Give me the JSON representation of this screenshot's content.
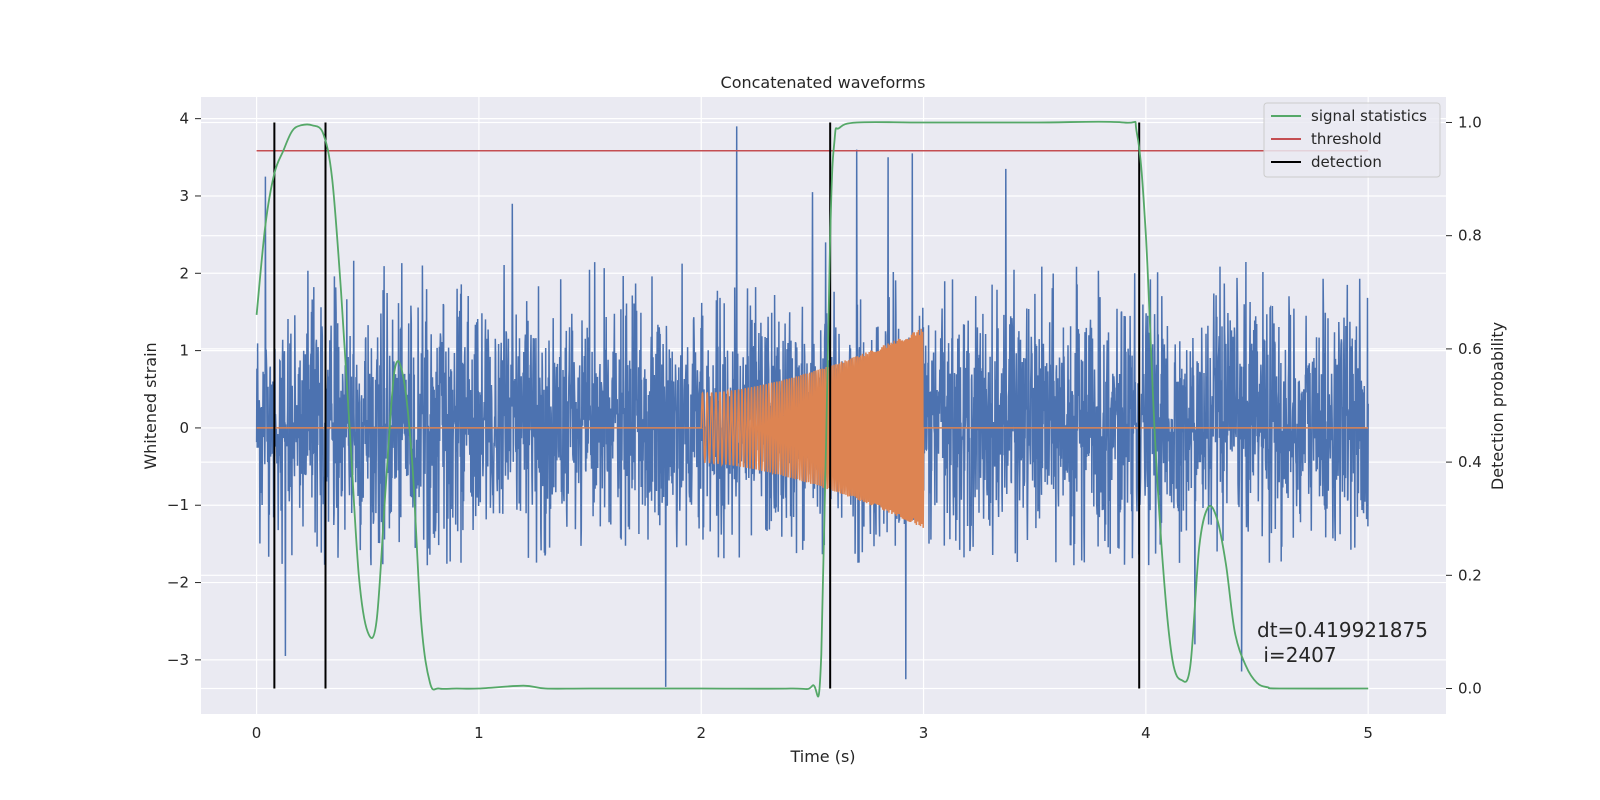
{
  "chart_data": {
    "type": "line",
    "title": "Concatenated waveforms",
    "xlabel": "Time (s)",
    "ylabel_left": "Whitened strain",
    "ylabel_right": "Detection probability",
    "xlim": [
      -0.25,
      5.35
    ],
    "ylim_left": [
      -3.7,
      4.28
    ],
    "ylim_right": [
      -0.045,
      1.045
    ],
    "x_ticks": [
      0,
      1,
      2,
      3,
      4,
      5
    ],
    "x_tick_labels": [
      "0",
      "1",
      "2",
      "3",
      "4",
      "5"
    ],
    "y_left_ticks": [
      -3,
      -2,
      -1,
      0,
      1,
      2,
      3,
      4
    ],
    "y_left_tick_labels": [
      "−3",
      "−2",
      "−1",
      "0",
      "1",
      "2",
      "3",
      "4"
    ],
    "y_right_ticks": [
      0.0,
      0.2,
      0.4,
      0.6,
      0.8,
      1.0
    ],
    "y_right_tick_labels": [
      "0.0",
      "0.2",
      "0.4",
      "0.6",
      "0.8",
      "1.0"
    ],
    "grid": true,
    "legend_position": "top-right",
    "legend": [
      {
        "label": "signal statistics",
        "color": "#55a868",
        "style": "line"
      },
      {
        "label": "threshold",
        "color": "#c44e52",
        "style": "line"
      },
      {
        "label": "detection",
        "color": "#000000",
        "style": "line"
      }
    ],
    "series": [
      {
        "name": "",
        "axis": "left",
        "kind": "noise",
        "color": "#4c72b0",
        "x_range": [
          0,
          5
        ],
        "typical_amplitude": [
          -1.8,
          2.2
        ],
        "peak_values": [
          {
            "x": 0.04,
            "y": 3.25
          },
          {
            "x": 0.31,
            "y": 2.6
          },
          {
            "x": 1.15,
            "y": 2.9
          },
          {
            "x": 2.16,
            "y": 3.9
          },
          {
            "x": 2.5,
            "y": 3.05
          },
          {
            "x": 2.56,
            "y": 2.4
          },
          {
            "x": 2.7,
            "y": 3.6
          },
          {
            "x": 2.84,
            "y": 3.5
          },
          {
            "x": 2.95,
            "y": 3.55
          },
          {
            "x": 3.37,
            "y": 3.35
          },
          {
            "x": 1.84,
            "y": -3.35
          },
          {
            "x": 2.92,
            "y": -3.25
          },
          {
            "x": 0.13,
            "y": -2.95
          },
          {
            "x": 4.43,
            "y": -3.15
          },
          {
            "x": 4.22,
            "y": -2.8
          }
        ]
      },
      {
        "name": "",
        "axis": "left",
        "kind": "chirp",
        "color": "#dd8452",
        "flat_range": [
          0,
          5
        ],
        "chirp_start": 2.0,
        "chirp_end": 3.0,
        "amplitude_start": 0.45,
        "amplitude_end": 1.3
      },
      {
        "name": "signal statistics",
        "axis": "right",
        "color": "#55a868",
        "x": [
          0,
          0.04,
          0.08,
          0.12,
          0.16,
          0.2,
          0.25,
          0.3,
          0.34,
          0.38,
          0.42,
          0.46,
          0.5,
          0.54,
          0.58,
          0.62,
          0.66,
          0.7,
          0.74,
          0.78,
          0.82,
          0.9,
          1.0,
          1.2,
          1.3,
          1.5,
          2.0,
          2.4,
          2.5,
          2.54,
          2.58,
          2.6,
          2.62,
          2.7,
          3.0,
          3.5,
          3.9,
          3.96,
          4.0,
          4.04,
          4.08,
          4.12,
          4.16,
          4.2,
          4.24,
          4.28,
          4.32,
          4.36,
          4.4,
          4.45,
          4.5,
          4.55,
          4.6,
          5.0
        ],
        "y": [
          0.66,
          0.82,
          0.91,
          0.95,
          0.985,
          0.995,
          0.995,
          0.98,
          0.9,
          0.7,
          0.45,
          0.2,
          0.1,
          0.12,
          0.35,
          0.56,
          0.55,
          0.4,
          0.12,
          0.01,
          0.0,
          0.0,
          0.0,
          0.005,
          0.0,
          0.0,
          0.0,
          0.0,
          0.005,
          0.06,
          0.8,
          0.97,
          0.99,
          1.0,
          1.0,
          1.0,
          1.0,
          0.98,
          0.8,
          0.45,
          0.2,
          0.05,
          0.015,
          0.04,
          0.25,
          0.32,
          0.3,
          0.22,
          0.1,
          0.04,
          0.01,
          0.002,
          0.0,
          0.0
        ]
      },
      {
        "name": "threshold",
        "axis": "right",
        "color": "#c44e52",
        "x": [
          0,
          5
        ],
        "y": [
          0.95,
          0.95
        ]
      },
      {
        "name": "detection",
        "axis": "right",
        "color": "#000000",
        "kind": "vlines",
        "x": [
          0.08,
          0.31,
          2.58,
          3.97
        ],
        "y_range": [
          0,
          1
        ]
      }
    ],
    "annotation": {
      "line1": "dt=0.419921875",
      "line2": " i=2407",
      "x": 4.5,
      "y_right": 0.1
    }
  }
}
